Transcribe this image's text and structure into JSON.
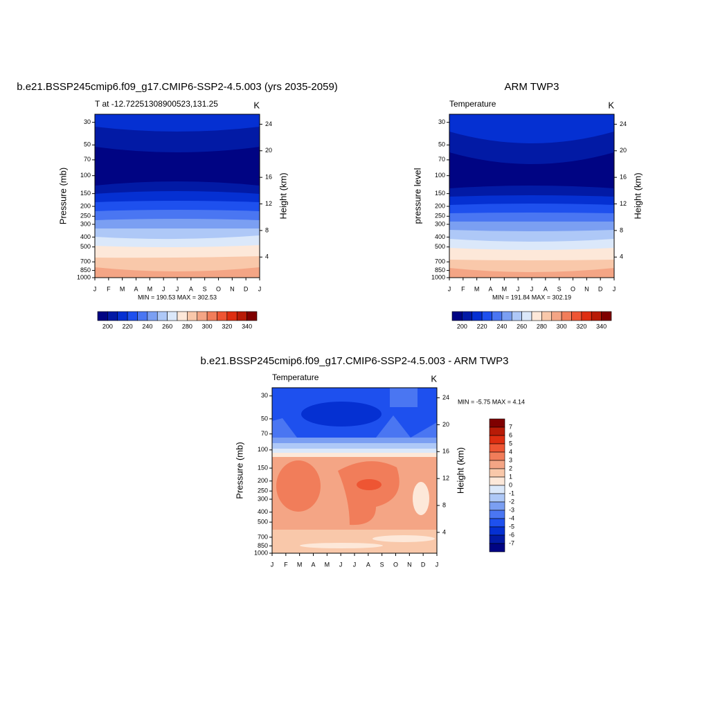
{
  "panels": [
    {
      "title": "b.e21.BSSP245cmip6.f09_g17.CMIP6-SSP2-4.5.003 (yrs 2035-2059)",
      "left_label": "T at -12.72251308900523,131.25",
      "right_label": "K",
      "y_label": "Pressure (mb)",
      "y2_label": "Height (km)",
      "ylim": [
        25,
        1000
      ],
      "yticks": [
        30,
        50,
        70,
        100,
        150,
        200,
        250,
        300,
        400,
        500,
        700,
        850,
        1000
      ],
      "y2lim": [
        0.9,
        25.5
      ],
      "y2ticks": [
        24,
        20,
        16,
        12,
        8,
        4
      ],
      "categories": [
        "J",
        "F",
        "M",
        "A",
        "M",
        "J",
        "J",
        "A",
        "S",
        "O",
        "N",
        "D",
        "J"
      ],
      "stats": "MIN = 190.53 MAX = 302.53"
    },
    {
      "title": "ARM TWP3",
      "left_label": "Temperature",
      "right_label": "K",
      "y_label": "pressure level",
      "y2_label": "Height (km)",
      "ylim": [
        25,
        1000
      ],
      "yticks": [
        30,
        50,
        70,
        100,
        150,
        200,
        250,
        300,
        400,
        500,
        700,
        850,
        1000
      ],
      "y2lim": [
        0.9,
        25.5
      ],
      "y2ticks": [
        24,
        20,
        16,
        12,
        8,
        4
      ],
      "categories": [
        "J",
        "F",
        "M",
        "A",
        "M",
        "J",
        "J",
        "A",
        "S",
        "O",
        "N",
        "D",
        "J"
      ],
      "stats": "MIN = 191.84 MAX = 302.19"
    },
    {
      "title": "b.e21.BSSP245cmip6.f09_g17.CMIP6-SSP2-4.5.003 - ARM TWP3",
      "left_label": "Temperature",
      "right_label": "K",
      "y_label": "Pressure (mb)",
      "y2_label": "Height (km)",
      "ylim": [
        25,
        1000
      ],
      "yticks": [
        30,
        50,
        70,
        100,
        150,
        200,
        250,
        300,
        400,
        500,
        700,
        850,
        1000
      ],
      "y2lim": [
        0.9,
        25.5
      ],
      "y2ticks": [
        24,
        20,
        16,
        12,
        8,
        4
      ],
      "categories": [
        "J",
        "F",
        "M",
        "A",
        "M",
        "J",
        "J",
        "A",
        "S",
        "O",
        "N",
        "D",
        "J"
      ],
      "stats": "MIN =  -5.75 MAX =   4.14"
    }
  ],
  "colorbar": {
    "lim": [
      190,
      350
    ],
    "ticks": [
      200,
      220,
      240,
      260,
      280,
      300,
      320,
      340
    ],
    "colors": [
      "#000483",
      "#021aa5",
      "#0530d2",
      "#1e50ee",
      "#4a76f2",
      "#7b9ff2",
      "#aec8f7",
      "#dbe8fa",
      "#fde8d9",
      "#f9c8aa",
      "#f4a585",
      "#f17d5a",
      "#ee5533",
      "#de2e11",
      "#b81b07",
      "#7f0000"
    ]
  },
  "diff_colorbar": {
    "lim": [
      8,
      -8
    ],
    "ticks": [
      7,
      6,
      5,
      4,
      3,
      2,
      1,
      0,
      -1,
      -2,
      -3,
      -4,
      -5,
      -6,
      -7
    ],
    "colors": [
      "#7f0000",
      "#b81b07",
      "#de2e11",
      "#ee5533",
      "#f17d5a",
      "#f4a585",
      "#f9c8aa",
      "#fde8d9",
      "#dbe8fa",
      "#aec8f7",
      "#7b9ff2",
      "#4a76f2",
      "#1e50ee",
      "#0530d2",
      "#021aa5",
      "#000483"
    ]
  }
}
